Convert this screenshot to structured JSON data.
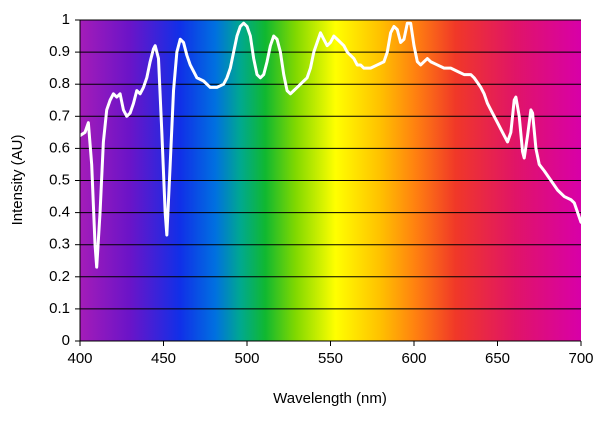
{
  "chart_data": {
    "type": "line",
    "x_label": "Wavelength (nm)",
    "y_label": "Intensity (AU)",
    "x": [
      400,
      403,
      405,
      407,
      409,
      410,
      412,
      414,
      416,
      418,
      420,
      422,
      424,
      426,
      428,
      430,
      432,
      434,
      436,
      438,
      440,
      442,
      444,
      445,
      447,
      449,
      451,
      452,
      454,
      456,
      458,
      460,
      462,
      464,
      466,
      468,
      470,
      474,
      478,
      482,
      486,
      488,
      490,
      492,
      494,
      496,
      498,
      500,
      502,
      504,
      506,
      508,
      510,
      512,
      514,
      516,
      518,
      520,
      522,
      524,
      526,
      528,
      530,
      532,
      534,
      536,
      538,
      540,
      542,
      544,
      546,
      548,
      550,
      552,
      554,
      556,
      558,
      560,
      562,
      564,
      566,
      568,
      570,
      574,
      578,
      582,
      584,
      586,
      588,
      590,
      592,
      594,
      596,
      598,
      600,
      602,
      604,
      606,
      608,
      610,
      614,
      618,
      622,
      626,
      630,
      634,
      636,
      640,
      642,
      644,
      646,
      648,
      650,
      652,
      654,
      656,
      658,
      660,
      661,
      663,
      665,
      666,
      668,
      670,
      671,
      673,
      675,
      678,
      682,
      686,
      690,
      694,
      696,
      698,
      700
    ],
    "values": [
      0.64,
      0.65,
      0.68,
      0.55,
      0.3,
      0.23,
      0.4,
      0.62,
      0.72,
      0.75,
      0.77,
      0.76,
      0.77,
      0.72,
      0.7,
      0.71,
      0.74,
      0.78,
      0.77,
      0.79,
      0.82,
      0.87,
      0.91,
      0.92,
      0.88,
      0.65,
      0.4,
      0.33,
      0.55,
      0.78,
      0.9,
      0.94,
      0.93,
      0.89,
      0.86,
      0.84,
      0.82,
      0.81,
      0.79,
      0.79,
      0.8,
      0.82,
      0.85,
      0.9,
      0.95,
      0.98,
      0.99,
      0.98,
      0.95,
      0.88,
      0.83,
      0.82,
      0.83,
      0.87,
      0.92,
      0.95,
      0.94,
      0.9,
      0.83,
      0.78,
      0.77,
      0.78,
      0.79,
      0.8,
      0.81,
      0.82,
      0.85,
      0.9,
      0.93,
      0.96,
      0.94,
      0.92,
      0.93,
      0.95,
      0.94,
      0.93,
      0.92,
      0.9,
      0.89,
      0.88,
      0.86,
      0.86,
      0.85,
      0.85,
      0.86,
      0.87,
      0.9,
      0.96,
      0.98,
      0.97,
      0.93,
      0.94,
      0.99,
      0.99,
      0.92,
      0.87,
      0.86,
      0.87,
      0.88,
      0.87,
      0.86,
      0.85,
      0.85,
      0.84,
      0.83,
      0.83,
      0.82,
      0.79,
      0.77,
      0.74,
      0.72,
      0.7,
      0.68,
      0.66,
      0.64,
      0.62,
      0.65,
      0.75,
      0.76,
      0.7,
      0.59,
      0.57,
      0.64,
      0.72,
      0.71,
      0.6,
      0.55,
      0.53,
      0.5,
      0.47,
      0.45,
      0.44,
      0.43,
      0.4,
      0.37
    ],
    "color": "#ffffff",
    "xlim": [
      400,
      700
    ],
    "xticks": [
      400,
      450,
      500,
      550,
      600,
      650,
      700
    ],
    "ylim": [
      0,
      1
    ],
    "yticks": [
      0,
      0.1,
      0.2,
      0.3,
      0.4,
      0.5,
      0.6,
      0.7,
      0.8,
      0.9,
      1
    ],
    "grid": true
  }
}
